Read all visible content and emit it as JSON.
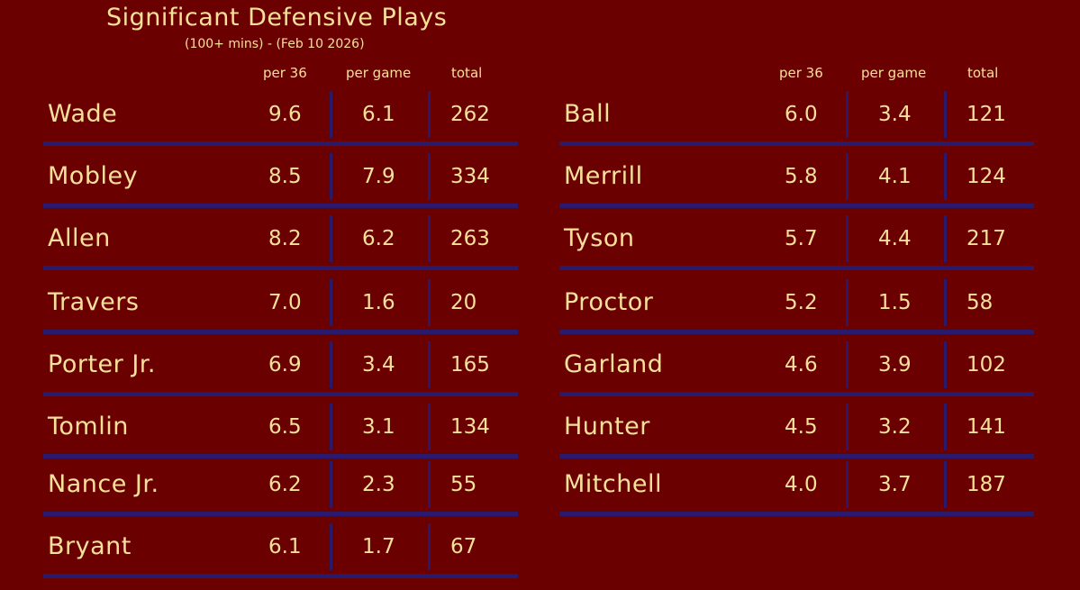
{
  "header": {
    "title": "Significant Defensive Plays",
    "subtitle": "(100+ mins) - (Feb 10 2026)"
  },
  "columns": {
    "per36": "per 36",
    "per_game": "per game",
    "total": "total"
  },
  "left_table": [
    {
      "name": "Wade",
      "per36": "9.6",
      "per_game": "6.1",
      "total": "262"
    },
    {
      "name": "Mobley",
      "per36": "8.5",
      "per_game": "7.9",
      "total": "334"
    },
    {
      "name": "Allen",
      "per36": "8.2",
      "per_game": "6.2",
      "total": "263"
    },
    {
      "name": "Travers",
      "per36": "7.0",
      "per_game": "1.6",
      "total": "20"
    },
    {
      "name": "Porter Jr.",
      "per36": "6.9",
      "per_game": "3.4",
      "total": "165"
    },
    {
      "name": "Tomlin",
      "per36": "6.5",
      "per_game": "3.1",
      "total": "134"
    },
    {
      "name": "Nance Jr.",
      "per36": "6.2",
      "per_game": "2.3",
      "total": "55"
    },
    {
      "name": "Bryant",
      "per36": "6.1",
      "per_game": "1.7",
      "total": "67"
    }
  ],
  "right_table": [
    {
      "name": "Ball",
      "per36": "6.0",
      "per_game": "3.4",
      "total": "121"
    },
    {
      "name": "Merrill",
      "per36": "5.8",
      "per_game": "4.1",
      "total": "124"
    },
    {
      "name": "Tyson",
      "per36": "5.7",
      "per_game": "4.4",
      "total": "217"
    },
    {
      "name": "Proctor",
      "per36": "5.2",
      "per_game": "1.5",
      "total": "58"
    },
    {
      "name": "Garland",
      "per36": "4.6",
      "per_game": "3.9",
      "total": "102"
    },
    {
      "name": "Hunter",
      "per36": "4.5",
      "per_game": "3.2",
      "total": "141"
    },
    {
      "name": "Mitchell",
      "per36": "4.0",
      "per_game": "3.7",
      "total": "187"
    }
  ]
}
